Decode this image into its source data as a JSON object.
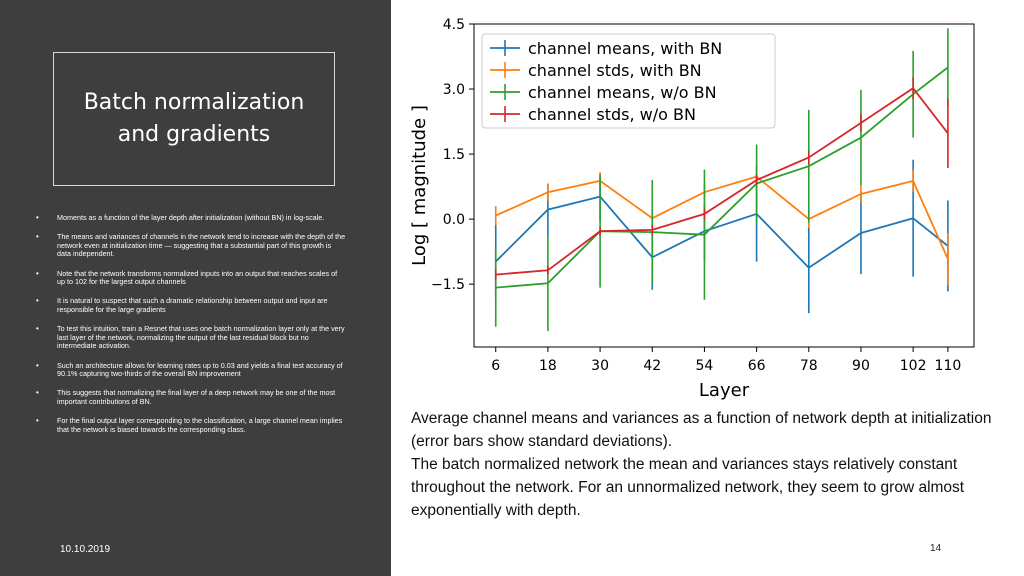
{
  "slide": {
    "title": "Batch normalization and gradients",
    "bullets": [
      "Moments as a function of the layer depth after initialization (without BN) in log-scale.",
      "The means and variances of channels in the network tend to increase with the depth of the network even at initialization time — suggesting that a substantial part of this growth is data independent.",
      "Note that the network transforms normalized inputs into an output that reaches scales of up to 102 for the largest output channels",
      "It is natural to suspect that such a dramatic relationship between output and input are responsible for the large gradients",
      "To test this intuition, train a Resnet that uses one batch normalization layer only at the very last layer of the network, normalizing the output of the last residual block but no intermediate activation.",
      "Such an architecture allows for learning rates up to 0.03 and yields a final test accuracy of 90.1% capturing two-thirds of the overall BN improvement",
      "This suggests that normalizing the final layer of a deep network may be one of the most important contributions of BN.",
      "For the final output layer corresponding to the classification, a large channel mean implies that the network is biased towards the corresponding class."
    ],
    "bullet_glyph": "•",
    "date": "10.10.2019",
    "page_number": "14",
    "caption_line1": "Average channel means and variances as a function of network depth at initialization (error bars show standard deviations).",
    "caption_line2": " The batch normalized network the mean and variances stays relatively constant throughout the network. For an unnormalized network, they seem to grow almost exponentially with depth."
  },
  "chart_data": {
    "type": "line",
    "xlabel": "Layer",
    "ylabel": "Log [ magnitude ]",
    "x": [
      6,
      18,
      30,
      42,
      54,
      66,
      78,
      90,
      102,
      110
    ],
    "xlim": [
      1,
      116
    ],
    "ylim": [
      -2.95,
      4.5
    ],
    "yticks": [
      4.5,
      3.0,
      1.5,
      0.0,
      -1.5
    ],
    "ytick_labels": [
      "4.5",
      "3.0",
      "1.5",
      "0.0",
      "−1.5"
    ],
    "legend_position": "top-left",
    "series": [
      {
        "name": "channel means, with BN",
        "color": "#1f77b4",
        "values": [
          -0.98,
          0.22,
          0.52,
          -0.88,
          -0.28,
          0.12,
          -1.12,
          -0.32,
          0.02,
          -0.62
        ],
        "err": [
          0.85,
          0.6,
          0.55,
          0.75,
          0.65,
          1.1,
          1.05,
          0.95,
          1.35,
          1.05
        ]
      },
      {
        "name": "channel stds, with BN",
        "color": "#ff7f0e",
        "values": [
          0.08,
          0.62,
          0.88,
          0.02,
          0.62,
          0.98,
          0.0,
          0.58,
          0.88,
          -0.92
        ],
        "err": [
          0.22,
          0.2,
          0.2,
          0.2,
          0.18,
          0.2,
          0.2,
          0.2,
          0.25,
          0.6
        ]
      },
      {
        "name": "channel means, w/o BN",
        "color": "#2ca02c",
        "values": [
          -1.58,
          -1.48,
          -0.28,
          -0.3,
          -0.36,
          0.82,
          1.22,
          1.88,
          2.88,
          3.5
        ],
        "err": [
          0.9,
          1.1,
          1.3,
          1.2,
          1.5,
          0.9,
          1.3,
          1.1,
          1.0,
          0.9
        ]
      },
      {
        "name": "channel stds, w/o BN",
        "color": "#d62728",
        "values": [
          -1.28,
          -1.18,
          -0.28,
          -0.25,
          0.12,
          0.9,
          1.42,
          2.22,
          3.02,
          1.98
        ],
        "err": [
          0.12,
          0.1,
          0.1,
          0.12,
          0.12,
          0.12,
          0.15,
          0.2,
          0.25,
          0.8
        ]
      }
    ]
  }
}
